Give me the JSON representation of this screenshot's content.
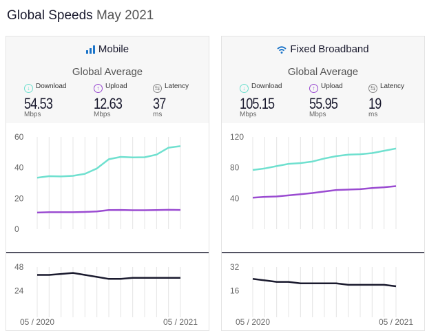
{
  "page": {
    "title": "Global Speeds",
    "subtitle": "May 2021"
  },
  "colors": {
    "download": "#6fe0cf",
    "upload": "#9a4bd1",
    "latency": "#1a1a2e",
    "icon": "#1a73c8"
  },
  "panels": [
    {
      "id": "mobile",
      "title": "Mobile",
      "icon": "signal-bars-icon",
      "average_label": "Global Average",
      "metrics": [
        {
          "label": "Download",
          "value": "54.53",
          "unit": "Mbps",
          "icon": "download-arrow-icon"
        },
        {
          "label": "Upload",
          "value": "12.63",
          "unit": "Mbps",
          "icon": "upload-arrow-icon"
        },
        {
          "label": "Latency",
          "value": "37",
          "unit": "ms",
          "icon": "latency-swap-icon"
        }
      ]
    },
    {
      "id": "fixed",
      "title": "Fixed Broadband",
      "icon": "wifi-icon",
      "average_label": "Global Average",
      "metrics": [
        {
          "label": "Download",
          "value": "105.15",
          "unit": "Mbps",
          "icon": "download-arrow-icon"
        },
        {
          "label": "Upload",
          "value": "55.95",
          "unit": "Mbps",
          "icon": "upload-arrow-icon"
        },
        {
          "label": "Latency",
          "value": "19",
          "unit": "ms",
          "icon": "latency-swap-icon"
        }
      ]
    }
  ],
  "chart_data": [
    {
      "type": "line",
      "panel": "Mobile",
      "x": [
        "05 / 2020",
        "06 / 2020",
        "07 / 2020",
        "08 / 2020",
        "09 / 2020",
        "10 / 2020",
        "11 / 2020",
        "12 / 2020",
        "01 / 2021",
        "02 / 2021",
        "03 / 2021",
        "04 / 2021",
        "05 / 2021"
      ],
      "x_tick_labels": [
        "05 / 2020",
        "05 / 2021"
      ],
      "speed": {
        "ylim": [
          0,
          60
        ],
        "yticks": [
          0,
          20,
          40,
          60
        ],
        "series": [
          {
            "name": "Download",
            "values": [
              33.5,
              34.5,
              34.3,
              34.7,
              36.0,
              39.5,
              45.5,
              47.0,
              46.7,
              46.8,
              48.5,
              53.0,
              54.0
            ]
          },
          {
            "name": "Upload",
            "values": [
              10.8,
              11.0,
              11.0,
              11.0,
              11.2,
              11.5,
              12.4,
              12.5,
              12.3,
              12.3,
              12.4,
              12.6,
              12.5
            ]
          }
        ]
      },
      "latency": {
        "ylim": [
          0,
          48
        ],
        "yticks": [
          24,
          48
        ],
        "series": [
          {
            "name": "Latency",
            "values": [
              40,
              40,
              41,
              42,
              40,
              38,
              36,
              36,
              37,
              37,
              37,
              37,
              37
            ]
          }
        ]
      }
    },
    {
      "type": "line",
      "panel": "Fixed Broadband",
      "x": [
        "05 / 2020",
        "06 / 2020",
        "07 / 2020",
        "08 / 2020",
        "09 / 2020",
        "10 / 2020",
        "11 / 2020",
        "12 / 2020",
        "01 / 2021",
        "02 / 2021",
        "03 / 2021",
        "04 / 2021",
        "05 / 2021"
      ],
      "x_tick_labels": [
        "05 / 2020",
        "05 / 2021"
      ],
      "speed": {
        "ylim": [
          0,
          120
        ],
        "yticks": [
          40,
          80,
          120
        ],
        "series": [
          {
            "name": "Download",
            "values": [
              77,
              79,
              82,
              85,
              86,
              88,
              92,
              95,
              97,
              97.5,
              99,
              102,
              105
            ]
          },
          {
            "name": "Upload",
            "values": [
              41,
              42,
              42.5,
              44,
              45.5,
              47,
              49,
              51,
              51.5,
              52,
              53.5,
              54.5,
              56
            ]
          }
        ]
      },
      "latency": {
        "ylim": [
          0,
          32
        ],
        "yticks": [
          16,
          32
        ],
        "series": [
          {
            "name": "Latency",
            "values": [
              24,
              23,
              22,
              22,
              21,
              21,
              21,
              21,
              20,
              20,
              20,
              20,
              19
            ]
          }
        ]
      }
    }
  ]
}
